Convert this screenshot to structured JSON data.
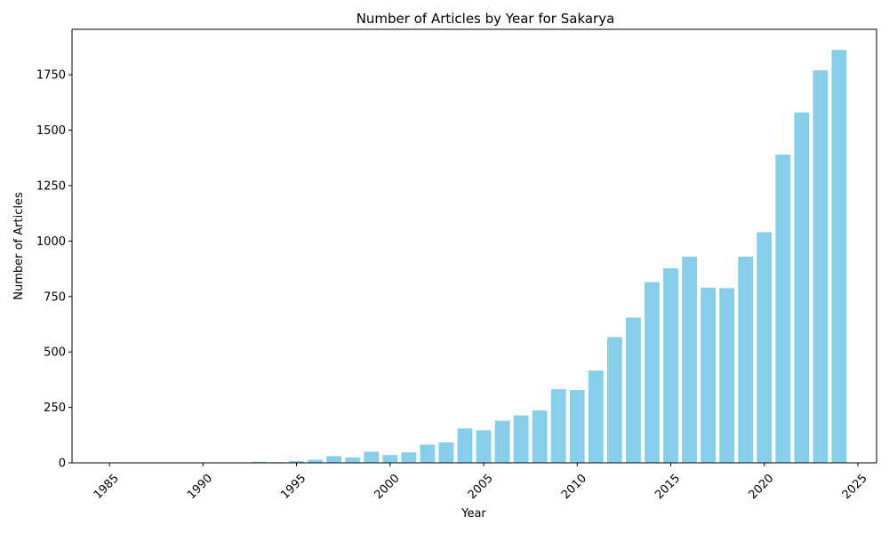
{
  "chart_data": {
    "type": "bar",
    "title": "Number of Articles by Year for Sakarya",
    "xlabel": "Year",
    "ylabel": "Number of Articles",
    "x": [
      1985,
      1988,
      1989,
      1990,
      1991,
      1992,
      1993,
      1994,
      1995,
      1996,
      1997,
      1998,
      1999,
      2000,
      2001,
      2002,
      2003,
      2004,
      2005,
      2006,
      2007,
      2008,
      2009,
      2010,
      2011,
      2012,
      2013,
      2014,
      2015,
      2016,
      2017,
      2018,
      2019,
      2020,
      2021,
      2022,
      2023,
      2024
    ],
    "values": [
      1,
      1,
      1,
      2,
      2,
      1,
      5,
      3,
      8,
      14,
      30,
      24,
      50,
      35,
      47,
      82,
      92,
      155,
      147,
      190,
      214,
      236,
      332,
      328,
      416,
      567,
      655,
      815,
      877,
      930,
      790,
      788,
      930,
      1040,
      1390,
      1580,
      1770,
      1862
    ],
    "xlim": [
      1983,
      2026
    ],
    "ylim": [
      0,
      1955
    ],
    "xticks": [
      1985,
      1990,
      1995,
      2000,
      2005,
      2010,
      2015,
      2020,
      2025
    ],
    "yticks": [
      0,
      250,
      500,
      750,
      1000,
      1250,
      1500,
      1750
    ],
    "bar_color": "#87CEEB",
    "grid": false
  }
}
